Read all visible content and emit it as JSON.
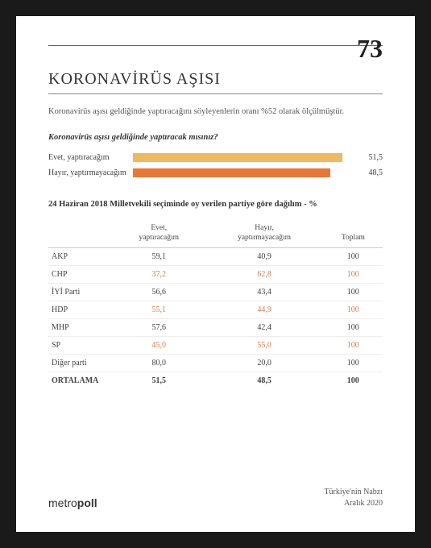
{
  "page_number": "73",
  "title": "KORONAVİRÜS AŞISI",
  "intro": "Koronavirüs aşısı geldiğinde yaptıracağını söyleyenlerin oranı %52 olarak ölçülmüştür.",
  "question": "Koronavirüs aşısı geldiğinde yaptıracak mısınız?",
  "bars": [
    {
      "label": "Evet, yaptıracağım",
      "value": "51,5",
      "pct": 51.5,
      "color": "#f0b860"
    },
    {
      "label": "Hayır, yaptırmayacağım",
      "value": "48,5",
      "pct": 48.5,
      "color": "#e87838"
    }
  ],
  "max_bar": 55,
  "table_title": "24 Haziran 2018 Milletvekili seçiminde oy verilen partiye göre dağılım - %",
  "columns": [
    "",
    "Evet, yaptıracağım",
    "Hayır, yaptırmayacağım",
    "Toplam"
  ],
  "rows": [
    {
      "cells": [
        "AKP",
        "59,1",
        "40,9",
        "100"
      ],
      "highlight": false
    },
    {
      "cells": [
        "CHP",
        "37,2",
        "62,8",
        "100"
      ],
      "highlight": true
    },
    {
      "cells": [
        "İYİ Parti",
        "56,6",
        "43,4",
        "100"
      ],
      "highlight": false
    },
    {
      "cells": [
        "HDP",
        "55,1",
        "44,9",
        "100"
      ],
      "highlight": true
    },
    {
      "cells": [
        "MHP",
        "57,6",
        "42,4",
        "100"
      ],
      "highlight": false
    },
    {
      "cells": [
        "SP",
        "45,0",
        "55,0",
        "100"
      ],
      "highlight": true
    },
    {
      "cells": [
        "Diğer parti",
        "80,0",
        "20,0",
        "100"
      ],
      "highlight": false
    },
    {
      "cells": [
        "ORTALAMA",
        "51,5",
        "48,5",
        "100"
      ],
      "bold": true
    }
  ],
  "brand_light": "metro",
  "brand_bold": "poll",
  "footer_line1": "Türkiye'nin Nabzı",
  "footer_line2": "Aralık 2020"
}
